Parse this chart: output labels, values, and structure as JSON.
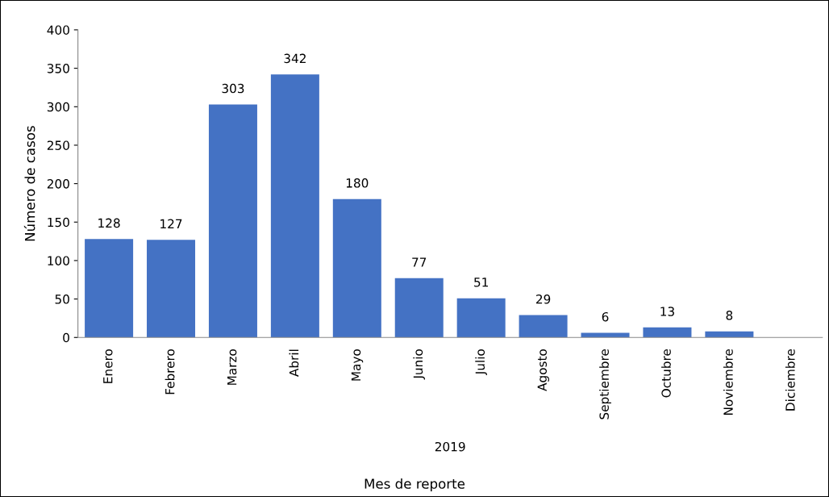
{
  "chart_data": {
    "type": "bar",
    "xlabel": "Mes de reporte",
    "ylabel": "Número de casos",
    "categories": [
      "Enero",
      "Febrero",
      "Marzo",
      "Abril",
      "Mayo",
      "Junio",
      "Julio",
      "Agosto",
      "Septiembre",
      "Octubre",
      "Noviembre",
      "Diciembre"
    ],
    "values": [
      128,
      127,
      303,
      342,
      180,
      77,
      51,
      29,
      6,
      13,
      8,
      null
    ],
    "color": "#4472c4",
    "ylim": [
      0,
      400
    ],
    "yticks": [
      0,
      50,
      100,
      150,
      200,
      250,
      300,
      350,
      400
    ],
    "data_labels": true,
    "grid": false,
    "annotations": [
      "2019"
    ]
  }
}
